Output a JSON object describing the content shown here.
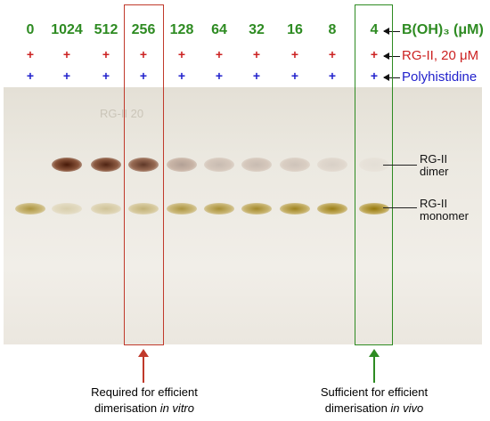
{
  "boron_row": {
    "label": "B(OH)₃ (μM)",
    "concentrations": [
      "0",
      "1024",
      "512",
      "256",
      "128",
      "64",
      "32",
      "16",
      "8",
      "4"
    ],
    "color": "#2e8b22"
  },
  "rg2_row": {
    "label": "RG-II, 20 μM",
    "symbol": "+",
    "color": "#cc2222"
  },
  "polyhis_row": {
    "label": "Polyhistidine",
    "symbol": "+",
    "color": "#2222cc"
  },
  "gel": {
    "faint_text": "RG-II 20",
    "dimer_intensity": [
      0,
      1.0,
      0.95,
      0.85,
      0.35,
      0.22,
      0.22,
      0.18,
      0.12,
      0.05
    ],
    "monomer_intensity": [
      0.75,
      0.25,
      0.35,
      0.5,
      0.75,
      0.8,
      0.85,
      0.9,
      0.95,
      1.0
    ]
  },
  "band_labels": {
    "dimer": [
      "RG-II",
      "dimer"
    ],
    "monomer": [
      "RG-II",
      "monomer"
    ]
  },
  "highlights": {
    "in_vitro": {
      "line1": "Required for efficient",
      "line2_prefix": "dimerisation ",
      "line2_italic": "in vitro",
      "color": "#c0392b"
    },
    "in_vivo": {
      "line1": "Sufficient for efficient",
      "line2_prefix": "dimerisation ",
      "line2_italic": "in vivo",
      "color": "#2e8b22"
    }
  }
}
